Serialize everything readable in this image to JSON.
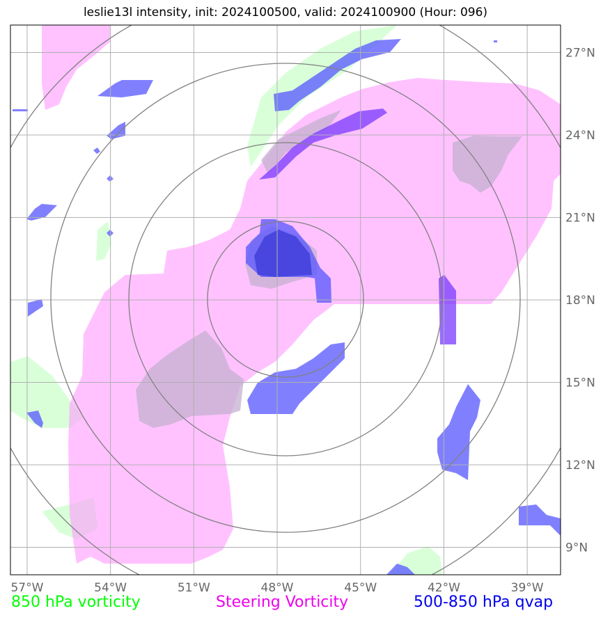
{
  "title": "leslie13l intensity, init: 2024100500, valid: 2024100900 (Hour: 096)",
  "map": {
    "lon_range": [
      -57.6,
      -37.8
    ],
    "lat_range": [
      8.0,
      28.0
    ],
    "lon_ticks": [
      {
        "value": -57,
        "label": "57°W"
      },
      {
        "value": -54,
        "label": "54°W"
      },
      {
        "value": -51,
        "label": "51°W"
      },
      {
        "value": -48,
        "label": "48°W"
      },
      {
        "value": -45,
        "label": "45°W"
      },
      {
        "value": -42,
        "label": "42°W"
      },
      {
        "value": -39,
        "label": "39°W"
      }
    ],
    "lat_ticks": [
      {
        "value": 27,
        "label": "27°N"
      },
      {
        "value": 24,
        "label": "24°N"
      },
      {
        "value": 21,
        "label": "21°N"
      },
      {
        "value": 18,
        "label": "18°N"
      },
      {
        "value": 15,
        "label": "15°N"
      },
      {
        "value": 12,
        "label": "12°N"
      },
      {
        "value": 9,
        "label": "9°N"
      }
    ],
    "range_ring_center": {
      "lon": -48.0,
      "lat": 18.2
    },
    "colors": {
      "vorticity": "#ccffcc",
      "steering": "#ff99ff",
      "qvap": "#5555ff",
      "ring": "#808080",
      "grid": "#b0b0b0"
    }
  },
  "legend": {
    "vorticity": {
      "label": "850 hPa vorticity",
      "color": "#00ff00"
    },
    "steering": {
      "label": "Steering Vorticity",
      "color": "#ee00ee"
    },
    "qvap": {
      "label": "500-850 hPa qvap",
      "color": "#0000ee"
    }
  }
}
